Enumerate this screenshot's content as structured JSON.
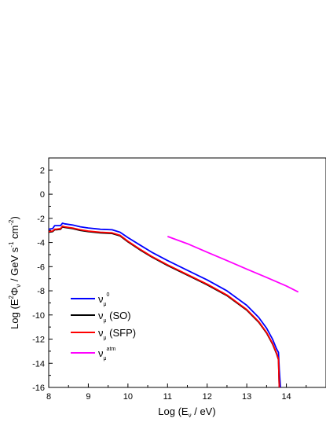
{
  "chart_data": {
    "type": "line",
    "xlabel": "Log (E_ν / eV)",
    "ylabel": "Log (E²Φ_ν / GeV s⁻¹ cm⁻²)",
    "xlim": [
      8,
      15
    ],
    "ylim": [
      -16,
      3
    ],
    "x_ticks": [
      "8",
      "9",
      "10",
      "11",
      "12",
      "13",
      "14"
    ],
    "y_ticks": [
      "2",
      "0",
      "-2",
      "-4",
      "-6",
      "-8",
      "-10",
      "-12",
      "-14",
      "-16"
    ],
    "legend_position": "lower-left",
    "series": [
      {
        "name": "ν_μ^0",
        "color": "#0000ff",
        "x": [
          8.0,
          8.1,
          8.15,
          8.2,
          8.3,
          8.35,
          8.4,
          8.6,
          8.8,
          9.0,
          9.3,
          9.6,
          9.8,
          10.0,
          10.3,
          10.6,
          11.0,
          11.5,
          12.0,
          12.5,
          13.0,
          13.3,
          13.5,
          13.65,
          13.75,
          13.8,
          13.82,
          13.85
        ],
        "values": [
          -2.9,
          -2.85,
          -2.6,
          -2.6,
          -2.6,
          -2.4,
          -2.45,
          -2.55,
          -2.7,
          -2.8,
          -2.9,
          -2.95,
          -3.15,
          -3.6,
          -4.2,
          -4.8,
          -5.5,
          -6.3,
          -7.1,
          -8.0,
          -9.2,
          -10.2,
          -11.1,
          -12.0,
          -12.8,
          -13.1,
          -14.5,
          -16.0
        ]
      },
      {
        "name": "ν_μ (SO)",
        "color": "#000000",
        "x": [
          8.0,
          8.1,
          8.15,
          8.2,
          8.3,
          8.35,
          8.4,
          8.6,
          8.8,
          9.0,
          9.3,
          9.6,
          9.8,
          10.0,
          10.3,
          10.6,
          11.0,
          11.5,
          12.0,
          12.5,
          13.0,
          13.3,
          13.5,
          13.65,
          13.75,
          13.8,
          13.82
        ],
        "values": [
          -3.15,
          -3.1,
          -2.95,
          -2.95,
          -2.9,
          -2.7,
          -2.75,
          -2.85,
          -3.0,
          -3.1,
          -3.2,
          -3.25,
          -3.45,
          -3.95,
          -4.6,
          -5.2,
          -5.9,
          -6.7,
          -7.5,
          -8.4,
          -9.6,
          -10.6,
          -11.5,
          -12.4,
          -13.2,
          -13.7,
          -16.0
        ]
      },
      {
        "name": "ν_μ (SFP)",
        "color": "#ff0000",
        "x": [
          8.0,
          8.1,
          8.15,
          8.2,
          8.3,
          8.35,
          8.4,
          8.6,
          8.8,
          9.0,
          9.3,
          9.6,
          9.8,
          10.0,
          10.3,
          10.6,
          11.0,
          11.5,
          12.0,
          12.5,
          13.0,
          13.3,
          13.5,
          13.65,
          13.75,
          13.8,
          13.82
        ],
        "values": [
          -3.1,
          -3.05,
          -2.9,
          -2.9,
          -2.85,
          -2.65,
          -2.7,
          -2.8,
          -2.95,
          -3.05,
          -3.15,
          -3.2,
          -3.4,
          -3.9,
          -4.55,
          -5.15,
          -5.85,
          -6.65,
          -7.45,
          -8.35,
          -9.55,
          -10.55,
          -11.45,
          -12.35,
          -13.15,
          -13.65,
          -16.0
        ]
      },
      {
        "name": "ν_μ^atm",
        "color": "#ff00ff",
        "x": [
          11.0,
          11.5,
          12.0,
          12.5,
          13.0,
          13.5,
          14.0,
          14.3
        ],
        "values": [
          -3.5,
          -4.1,
          -4.8,
          -5.5,
          -6.2,
          -6.9,
          -7.6,
          -8.1
        ]
      }
    ]
  }
}
